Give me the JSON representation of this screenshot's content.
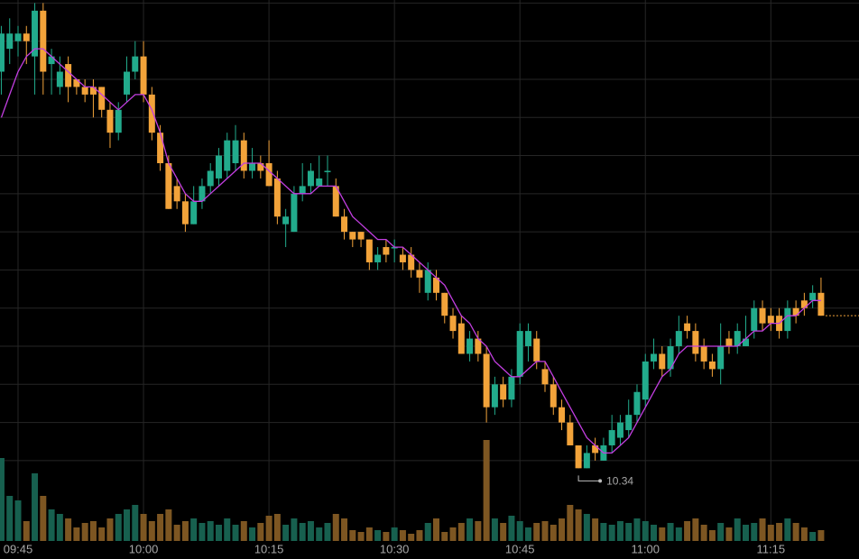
{
  "chart_data": {
    "type": "candlestick",
    "categories": [
      null,
      null,
      "09:45",
      null,
      null,
      null,
      null,
      null,
      null,
      null,
      null,
      null,
      null,
      null,
      null,
      null,
      null,
      "10:00",
      null,
      null,
      null,
      null,
      null,
      null,
      null,
      null,
      null,
      null,
      null,
      null,
      null,
      null,
      "10:15",
      null,
      null,
      null,
      null,
      null,
      null,
      null,
      null,
      null,
      null,
      null,
      null,
      null,
      null,
      "10:30",
      null,
      null,
      null,
      null,
      null,
      null,
      null,
      null,
      null,
      null,
      null,
      null,
      null,
      null,
      "10:45",
      null,
      null,
      null,
      null,
      null,
      null,
      null,
      null,
      null,
      null,
      null,
      null,
      null,
      null,
      "11:00",
      null,
      null,
      null,
      null,
      null,
      null,
      null,
      null,
      null,
      null,
      null,
      null,
      null,
      null,
      "11:15",
      null,
      null,
      null,
      null,
      null,
      null
    ],
    "open": [
      10.86,
      10.89,
      10.9,
      10.91,
      10.88,
      10.94,
      10.87,
      10.84,
      10.87,
      10.85,
      10.84,
      10.84,
      10.84,
      10.81,
      10.78,
      10.83,
      10.86,
      10.88,
      10.83,
      10.78,
      10.74,
      10.71,
      10.69,
      10.66,
      10.69,
      10.71,
      10.72,
      10.73,
      10.74,
      10.77,
      10.73,
      10.74,
      10.74,
      10.72,
      10.66,
      10.65,
      10.7,
      10.71,
      10.71,
      10.73,
      10.71,
      10.67,
      10.65,
      10.65,
      10.64,
      10.61,
      10.63,
      10.63,
      10.62,
      10.62,
      10.6,
      10.57,
      10.59,
      10.57,
      10.54,
      10.53,
      10.49,
      10.51,
      10.49,
      10.42,
      10.45,
      10.43,
      10.46,
      10.5,
      10.51,
      10.47,
      10.45,
      10.42,
      10.4,
      10.37,
      10.34,
      10.37,
      10.35,
      10.37,
      10.38,
      10.39,
      10.41,
      10.43,
      10.48,
      10.49,
      10.47,
      10.5,
      10.53,
      10.52,
      10.5,
      10.48,
      10.47,
      10.51,
      10.5,
      10.5,
      10.52,
      10.55,
      10.54,
      10.54,
      10.52,
      10.55,
      10.56,
      10.56,
      10.57
    ],
    "high": [
      10.92,
      10.93,
      10.92,
      10.92,
      10.95,
      10.95,
      10.89,
      10.88,
      10.88,
      10.85,
      10.85,
      10.85,
      10.84,
      10.82,
      10.82,
      10.88,
      10.9,
      10.9,
      10.84,
      10.79,
      10.75,
      10.72,
      10.7,
      10.71,
      10.72,
      10.74,
      10.76,
      10.78,
      10.79,
      10.78,
      10.76,
      10.75,
      10.77,
      10.73,
      10.68,
      10.71,
      10.74,
      10.74,
      10.75,
      10.75,
      10.72,
      10.68,
      10.65,
      10.65,
      10.64,
      10.63,
      10.64,
      10.64,
      10.63,
      10.63,
      10.61,
      10.61,
      10.6,
      10.57,
      10.55,
      10.54,
      10.52,
      10.52,
      10.5,
      10.46,
      10.46,
      10.47,
      10.53,
      10.53,
      10.52,
      10.48,
      10.46,
      10.43,
      10.41,
      10.37,
      10.37,
      10.38,
      10.38,
      10.41,
      10.41,
      10.43,
      10.45,
      10.49,
      10.51,
      10.5,
      10.51,
      10.54,
      10.54,
      10.53,
      10.51,
      10.49,
      10.53,
      10.52,
      10.53,
      10.54,
      10.56,
      10.56,
      10.55,
      10.55,
      10.56,
      10.56,
      10.57,
      10.58,
      10.59
    ],
    "low": [
      10.83,
      10.87,
      10.88,
      10.87,
      10.83,
      10.83,
      10.83,
      10.83,
      10.82,
      10.83,
      10.82,
      10.8,
      10.8,
      10.76,
      10.77,
      10.82,
      10.85,
      10.82,
      10.77,
      10.73,
      10.68,
      10.68,
      10.65,
      10.66,
      10.68,
      10.7,
      10.71,
      10.72,
      10.73,
      10.72,
      10.72,
      10.72,
      10.71,
      10.66,
      10.63,
      10.65,
      10.69,
      10.7,
      10.71,
      10.71,
      10.67,
      10.64,
      10.63,
      10.63,
      10.6,
      10.6,
      10.61,
      10.61,
      10.6,
      10.59,
      10.57,
      10.56,
      10.56,
      10.53,
      10.51,
      10.49,
      10.48,
      10.48,
      10.4,
      10.41,
      10.42,
      10.42,
      10.45,
      10.48,
      10.47,
      10.44,
      10.41,
      10.39,
      10.37,
      10.34,
      10.34,
      10.35,
      10.35,
      10.36,
      10.37,
      10.38,
      10.4,
      10.42,
      10.47,
      10.46,
      10.46,
      10.49,
      10.51,
      10.48,
      10.47,
      10.46,
      10.45,
      10.49,
      10.49,
      10.5,
      10.51,
      10.52,
      10.52,
      10.51,
      10.51,
      10.53,
      10.54,
      10.55,
      10.54
    ],
    "close": [
      10.91,
      10.91,
      10.91,
      10.9,
      10.94,
      10.86,
      10.88,
      10.86,
      10.84,
      10.84,
      10.83,
      10.83,
      10.81,
      10.78,
      10.81,
      10.86,
      10.88,
      10.83,
      10.78,
      10.74,
      10.68,
      10.69,
      10.66,
      10.69,
      10.71,
      10.73,
      10.75,
      10.77,
      10.77,
      10.73,
      10.74,
      10.73,
      10.71,
      10.67,
      10.67,
      10.7,
      10.71,
      10.73,
      10.72,
      10.73,
      10.67,
      10.65,
      10.64,
      10.64,
      10.61,
      10.62,
      10.62,
      10.63,
      10.61,
      10.6,
      10.59,
      10.6,
      10.57,
      10.54,
      10.52,
      10.49,
      10.51,
      10.49,
      10.42,
      10.45,
      10.43,
      10.46,
      10.52,
      10.52,
      10.48,
      10.45,
      10.42,
      10.4,
      10.37,
      10.34,
      10.36,
      10.36,
      10.37,
      10.39,
      10.4,
      10.41,
      10.44,
      10.48,
      10.49,
      10.47,
      10.5,
      10.52,
      10.52,
      10.49,
      10.48,
      10.47,
      10.5,
      10.5,
      10.52,
      10.51,
      10.55,
      10.53,
      10.53,
      10.52,
      10.55,
      10.54,
      10.55,
      10.57,
      10.54
    ],
    "up_color": "#22ab8c",
    "down_color": "#f2a33a",
    "ma": {
      "color": "#c23ee0",
      "values": [
        10.8,
        10.83,
        10.86,
        10.88,
        10.89,
        10.89,
        10.88,
        10.87,
        10.86,
        10.85,
        10.84,
        10.84,
        10.83,
        10.82,
        10.81,
        10.82,
        10.83,
        10.83,
        10.81,
        10.78,
        10.74,
        10.72,
        10.7,
        10.69,
        10.69,
        10.7,
        10.71,
        10.72,
        10.73,
        10.74,
        10.74,
        10.74,
        10.73,
        10.72,
        10.71,
        10.7,
        10.7,
        10.7,
        10.71,
        10.71,
        10.71,
        10.69,
        10.67,
        10.66,
        10.65,
        10.64,
        10.64,
        10.63,
        10.63,
        10.62,
        10.61,
        10.6,
        10.59,
        10.58,
        10.56,
        10.54,
        10.53,
        10.51,
        10.5,
        10.48,
        10.47,
        10.46,
        10.46,
        10.47,
        10.48,
        10.48,
        10.46,
        10.44,
        10.42,
        10.4,
        10.38,
        10.37,
        10.36,
        10.36,
        10.37,
        10.38,
        10.4,
        10.42,
        10.44,
        10.46,
        10.47,
        10.49,
        10.5,
        10.5,
        10.5,
        10.5,
        10.5,
        10.5,
        10.5,
        10.51,
        10.52,
        10.52,
        10.53,
        10.53,
        10.54,
        10.54,
        10.55,
        10.56,
        10.56
      ]
    },
    "volume": {
      "up_color": "#17604f",
      "down_color": "#7d5622",
      "values": [
        92,
        50,
        45,
        22,
        75,
        50,
        35,
        30,
        25,
        15,
        20,
        22,
        15,
        25,
        30,
        35,
        40,
        30,
        22,
        30,
        35,
        18,
        22,
        25,
        20,
        22,
        18,
        25,
        18,
        22,
        15,
        20,
        28,
        30,
        18,
        25,
        20,
        22,
        15,
        20,
        30,
        25,
        12,
        10,
        15,
        12,
        10,
        15,
        12,
        8,
        12,
        20,
        25,
        10,
        15,
        20,
        25,
        22,
        112,
        25,
        20,
        28,
        22,
        15,
        20,
        22,
        18,
        25,
        40,
        35,
        30,
        25,
        20,
        18,
        22,
        20,
        25,
        22,
        18,
        15,
        20,
        15,
        22,
        25,
        18,
        12,
        20,
        15,
        25,
        18,
        20,
        25,
        18,
        20,
        25,
        20,
        15,
        10,
        12
      ]
    },
    "ylim": [
      10.221,
      10.954
    ],
    "yticks": [
      10.35,
      10.4,
      10.45,
      10.5,
      10.55,
      10.6,
      10.65,
      10.7,
      10.75,
      10.8,
      10.85,
      10.9,
      10.95
    ],
    "y2lim": [
      0,
      130
    ],
    "grid": true
  }
}
